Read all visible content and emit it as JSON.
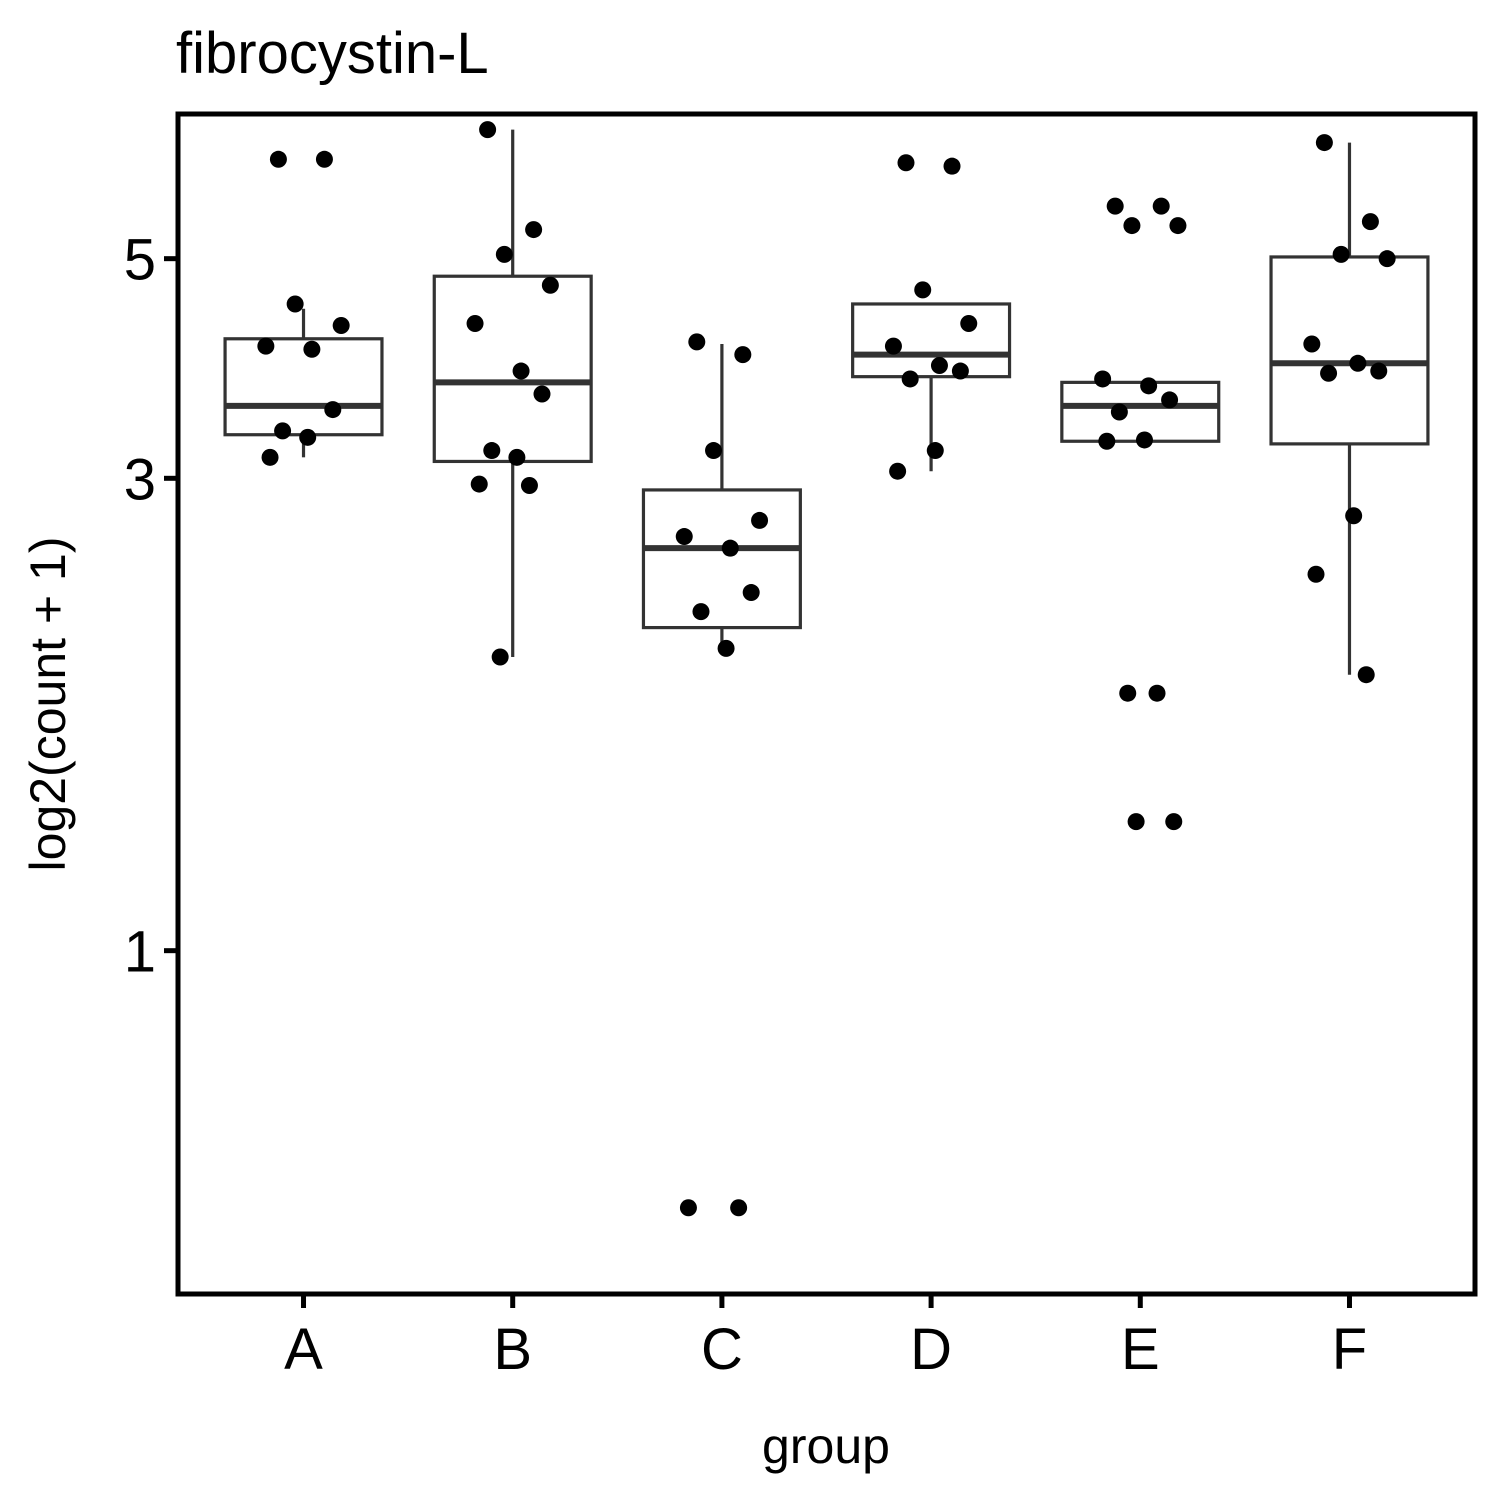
{
  "chart_data": {
    "type": "box",
    "title": "fibrocystin-L",
    "xlabel": "group",
    "ylabel": "log2(count + 1)",
    "y_scale": "log",
    "ylim": [
      0.45,
      7.0
    ],
    "y_ticks": [
      1,
      3,
      5
    ],
    "y_tick_labels": [
      "1",
      "3",
      "5"
    ],
    "categories": [
      "A",
      "B",
      "C",
      "D",
      "E",
      "F"
    ],
    "boxes": [
      {
        "group": "A",
        "lower_whisker": 3.15,
        "q1": 3.32,
        "median": 3.55,
        "q3": 4.15,
        "upper_whisker": 4.45
      },
      {
        "group": "B",
        "lower_whisker": 1.98,
        "q1": 3.12,
        "median": 3.75,
        "q3": 4.8,
        "upper_whisker": 6.75
      },
      {
        "group": "C",
        "lower_whisker": 2.0,
        "q1": 2.12,
        "median": 2.55,
        "q3": 2.92,
        "upper_whisker": 4.1
      },
      {
        "group": "D",
        "lower_whisker": 3.05,
        "q1": 3.8,
        "median": 4.0,
        "q3": 4.5,
        "upper_whisker": 4.5
      },
      {
        "group": "E",
        "lower_whisker": 3.27,
        "q1": 3.27,
        "median": 3.55,
        "q3": 3.75,
        "upper_whisker": 3.75
      },
      {
        "group": "F",
        "lower_whisker": 1.9,
        "q1": 3.25,
        "median": 3.92,
        "q3": 5.02,
        "upper_whisker": 6.55
      }
    ],
    "points": [
      {
        "group": "A",
        "values": [
          6.3,
          6.3,
          4.5,
          4.28,
          4.08,
          4.05,
          3.52,
          3.35,
          3.3,
          3.15
        ]
      },
      {
        "group": "B",
        "values": [
          6.75,
          5.35,
          5.05,
          4.7,
          4.3,
          3.85,
          3.65,
          3.2,
          3.15,
          2.96,
          2.95,
          1.98
        ]
      },
      {
        "group": "C",
        "values": [
          4.12,
          4.0,
          3.2,
          2.72,
          2.62,
          2.55,
          2.3,
          2.2,
          2.02,
          0.55,
          0.55
        ]
      },
      {
        "group": "D",
        "values": [
          6.25,
          6.2,
          4.65,
          4.3,
          4.08,
          3.9,
          3.85,
          3.78,
          3.2,
          3.05
        ]
      },
      {
        "group": "E",
        "values": [
          5.65,
          5.65,
          5.4,
          5.4,
          3.78,
          3.72,
          3.6,
          3.5,
          3.28,
          3.27,
          1.82,
          1.82,
          1.35,
          1.35
        ]
      },
      {
        "group": "F",
        "values": [
          6.55,
          5.45,
          5.05,
          5.0,
          4.1,
          3.92,
          3.85,
          3.83,
          2.75,
          2.4,
          1.9
        ]
      }
    ]
  }
}
